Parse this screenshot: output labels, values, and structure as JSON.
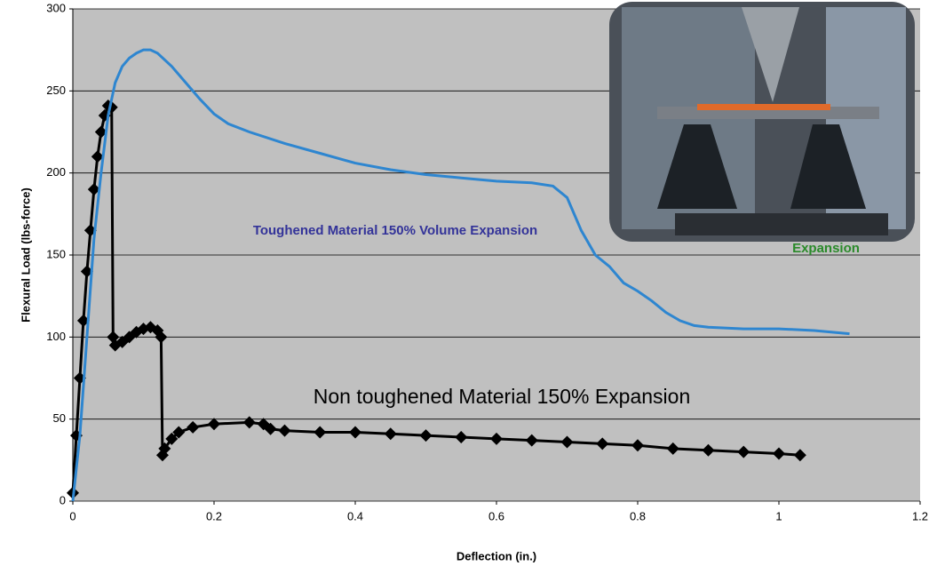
{
  "chart_data": {
    "type": "line",
    "x_label": "Deflection (in.)",
    "y_label": "Flexural Load (lbs-force)",
    "annotations": [
      "Toughened Material 150% Volume Expansion",
      "Non toughened Material 150% Expansion",
      "Expansion"
    ],
    "xlim": [
      0,
      1.2
    ],
    "xticks": [
      0,
      0.2,
      0.4,
      0.6,
      0.8,
      1,
      1.2
    ],
    "ylim": [
      0,
      300
    ],
    "yticks": [
      0,
      50,
      100,
      150,
      200,
      250,
      300
    ],
    "grid": true,
    "series": [
      {
        "name": "Toughened Material 150% Volume Expansion",
        "color": "#2e86d0",
        "marker": "none",
        "x": [
          0,
          0.01,
          0.02,
          0.03,
          0.04,
          0.05,
          0.06,
          0.07,
          0.08,
          0.09,
          0.1,
          0.11,
          0.12,
          0.14,
          0.16,
          0.18,
          0.2,
          0.22,
          0.25,
          0.3,
          0.35,
          0.4,
          0.45,
          0.5,
          0.55,
          0.6,
          0.65,
          0.68,
          0.7,
          0.72,
          0.74,
          0.76,
          0.78,
          0.8,
          0.82,
          0.84,
          0.86,
          0.88,
          0.9,
          0.95,
          1.0,
          1.05,
          1.1
        ],
        "values": [
          0,
          40,
          100,
          160,
          200,
          235,
          255,
          265,
          270,
          273,
          275,
          275,
          273,
          265,
          255,
          245,
          236,
          230,
          225,
          218,
          212,
          206,
          202,
          199,
          197,
          195,
          194,
          192,
          185,
          165,
          150,
          143,
          133,
          128,
          122,
          115,
          110,
          107,
          106,
          105,
          105,
          104,
          102
        ]
      },
      {
        "name": "Non toughened Material 150% Expansion",
        "color": "#000000",
        "marker": "diamond",
        "x": [
          0,
          0.005,
          0.01,
          0.015,
          0.02,
          0.025,
          0.03,
          0.035,
          0.04,
          0.045,
          0.05,
          0.055,
          0.057,
          0.06,
          0.07,
          0.08,
          0.09,
          0.1,
          0.11,
          0.12,
          0.125,
          0.127,
          0.13,
          0.14,
          0.15,
          0.17,
          0.2,
          0.25,
          0.27,
          0.28,
          0.3,
          0.35,
          0.4,
          0.45,
          0.5,
          0.55,
          0.6,
          0.65,
          0.7,
          0.75,
          0.8,
          0.85,
          0.9,
          0.95,
          1.0,
          1.03
        ],
        "values": [
          5,
          40,
          75,
          110,
          140,
          165,
          190,
          210,
          225,
          235,
          241,
          240,
          100,
          95,
          97,
          100,
          103,
          105,
          106,
          104,
          100,
          28,
          32,
          38,
          42,
          45,
          47,
          48,
          47,
          44,
          43,
          42,
          42,
          41,
          40,
          39,
          38,
          37,
          36,
          35,
          34,
          32,
          31,
          30,
          29,
          28
        ]
      }
    ]
  }
}
